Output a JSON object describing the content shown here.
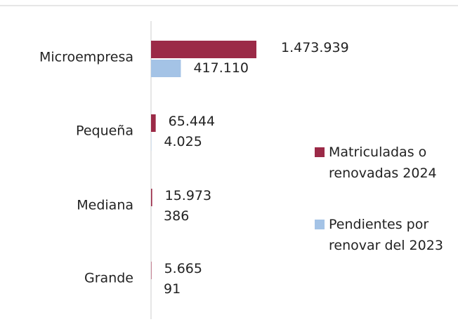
{
  "chart_data": {
    "type": "hbar",
    "categories": [
      "Microempresa",
      "Pequeña",
      "Mediana",
      "Grande"
    ],
    "series": [
      {
        "name": "Matriculadas o renovadas 2024",
        "color": "#9b2a47",
        "values": [
          1473939,
          65444,
          15973,
          5665
        ],
        "value_labels": [
          "1.473.939",
          "65.444",
          "15.973",
          "5.665"
        ]
      },
      {
        "name": "Pendientes por renovar del 2023",
        "color": "#a4c3e6",
        "values": [
          417110,
          4025,
          386,
          91
        ],
        "value_labels": [
          "417.110",
          "4.025",
          "386",
          "91"
        ]
      }
    ]
  }
}
